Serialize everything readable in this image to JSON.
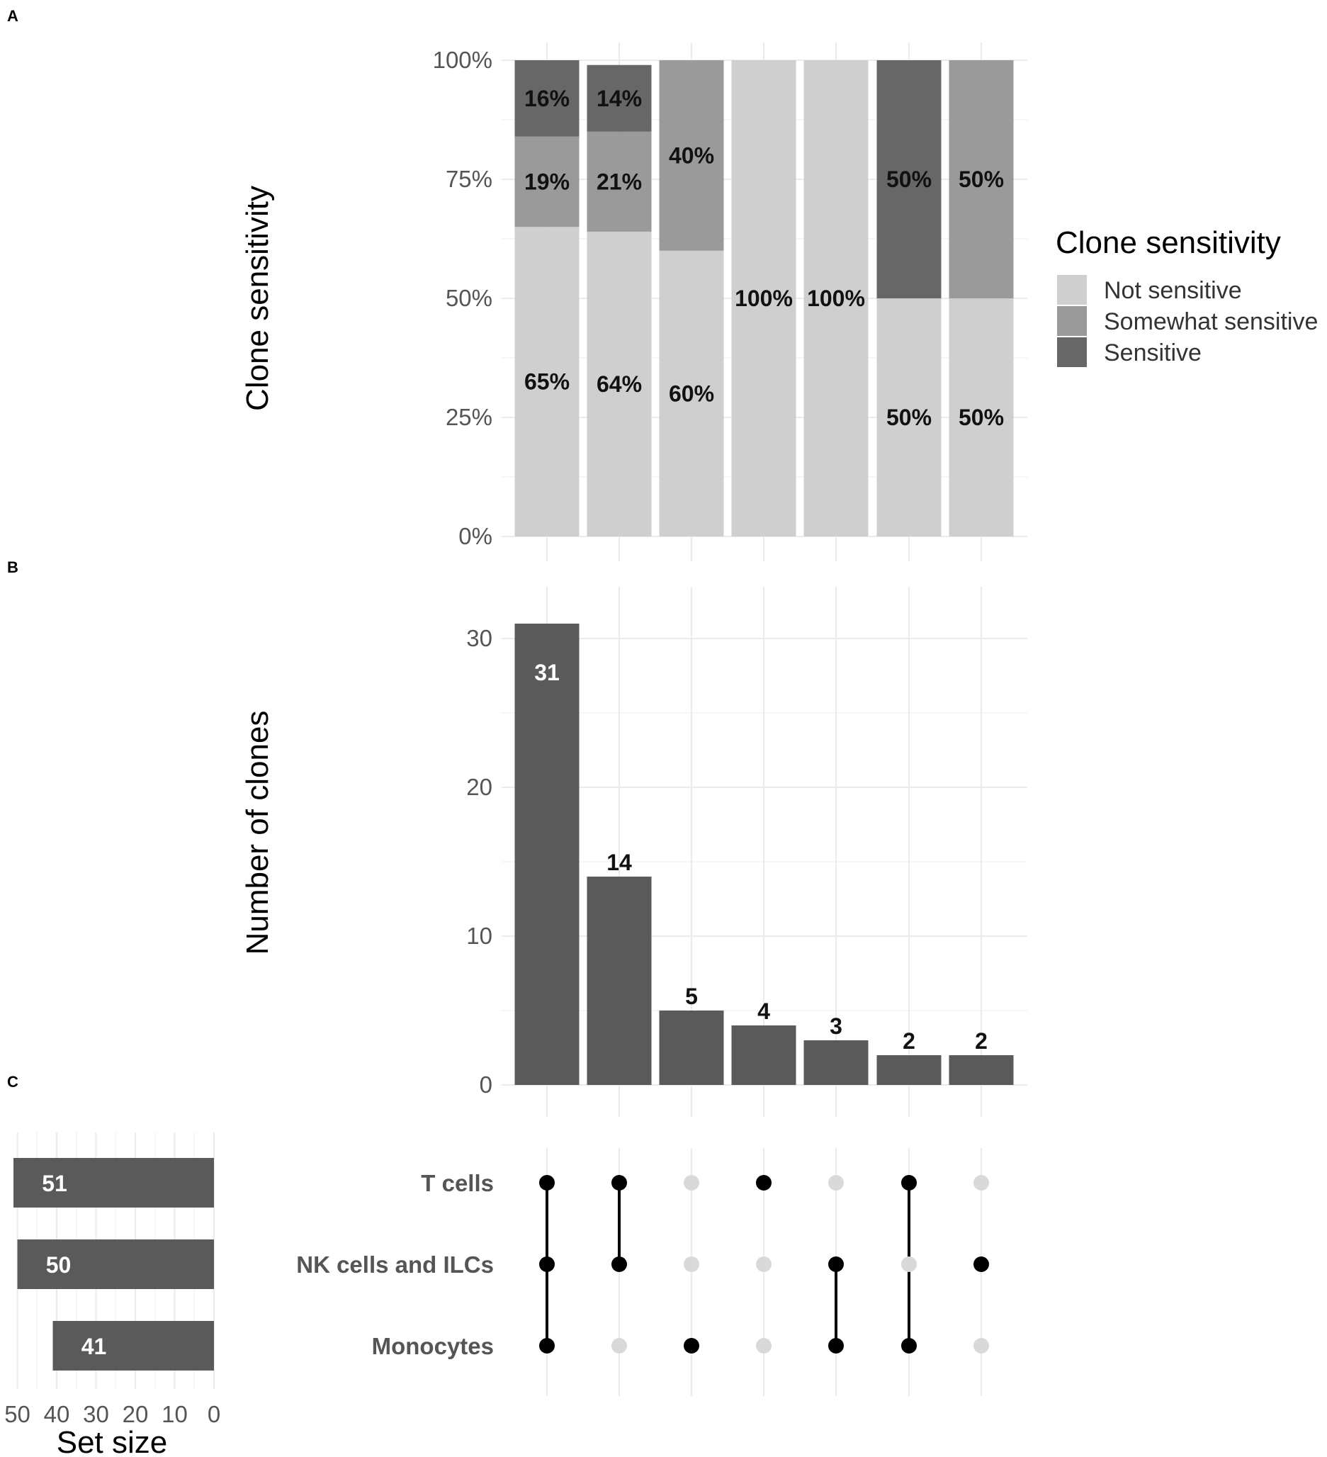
{
  "panels": {
    "a": "A",
    "b": "B",
    "c": "C"
  },
  "colors": {
    "not_sensitive": "#cfcfd0",
    "somewhat_sensitive": "#9a9a9a",
    "sensitive": "#666766",
    "bar": "#5a5a5a",
    "dot_on": "#000000",
    "dot_off": "#d9d9d9"
  },
  "chart_data": [
    {
      "id": "sensitivity",
      "type": "bar",
      "stacked": true,
      "ylabel": "Clone sensitivity",
      "ylim": [
        0,
        100
      ],
      "yticks": [
        "0%",
        "25%",
        "50%",
        "75%",
        "100%"
      ],
      "ytick_values": [
        0,
        25,
        50,
        75,
        100
      ],
      "legend": {
        "title": "Clone sensitivity",
        "position": "right",
        "items": [
          "Not sensitive",
          "Somewhat sensitive",
          "Sensitive"
        ]
      },
      "series": [
        {
          "name": "Not sensitive",
          "color": "#cfcfd0",
          "values": [
            65,
            64,
            60,
            100,
            100,
            50,
            50
          ],
          "labels": [
            "65%",
            "64%",
            "60%",
            "100%",
            "100%",
            "50%",
            "50%"
          ]
        },
        {
          "name": "Somewhat sensitive",
          "color": "#9a9a9a",
          "values": [
            19,
            21,
            40,
            0,
            0,
            0,
            50
          ],
          "labels": [
            "19%",
            "21%",
            "40%",
            "",
            "",
            "",
            "50%"
          ]
        },
        {
          "name": "Sensitive",
          "color": "#666766",
          "values": [
            16,
            14,
            0,
            0,
            0,
            50,
            0
          ],
          "labels": [
            "16%",
            "14%",
            "",
            "",
            "",
            "50%",
            ""
          ]
        }
      ]
    },
    {
      "id": "intersections",
      "type": "bar",
      "ylabel": "Number of clones",
      "ylim": [
        0,
        33
      ],
      "yticks": [
        "0",
        "10",
        "20",
        "30"
      ],
      "ytick_values": [
        0,
        10,
        20,
        30
      ],
      "values": [
        31,
        14,
        5,
        4,
        3,
        2,
        2
      ],
      "labels": [
        "31",
        "14",
        "5",
        "4",
        "3",
        "2",
        "2"
      ]
    },
    {
      "id": "set_sizes",
      "type": "bar",
      "orientation": "horizontal",
      "xlabel": "Set size",
      "xlim": [
        0,
        51
      ],
      "xticks": [
        "50",
        "40",
        "30",
        "20",
        "10",
        "0"
      ],
      "xtick_values": [
        50,
        40,
        30,
        20,
        10,
        0
      ],
      "sets": [
        "T cells",
        "NK cells and ILCs",
        "Monocytes"
      ],
      "values": [
        51,
        50,
        41
      ],
      "labels": [
        "51",
        "50",
        "41"
      ]
    },
    {
      "id": "matrix",
      "type": "table",
      "rows": [
        "T cells",
        "NK cells and ILCs",
        "Monocytes"
      ],
      "membership": [
        [
          1,
          1,
          1
        ],
        [
          1,
          1,
          0
        ],
        [
          0,
          0,
          1
        ],
        [
          1,
          0,
          0
        ],
        [
          0,
          1,
          1
        ],
        [
          1,
          0,
          1
        ],
        [
          0,
          1,
          0
        ]
      ]
    }
  ]
}
